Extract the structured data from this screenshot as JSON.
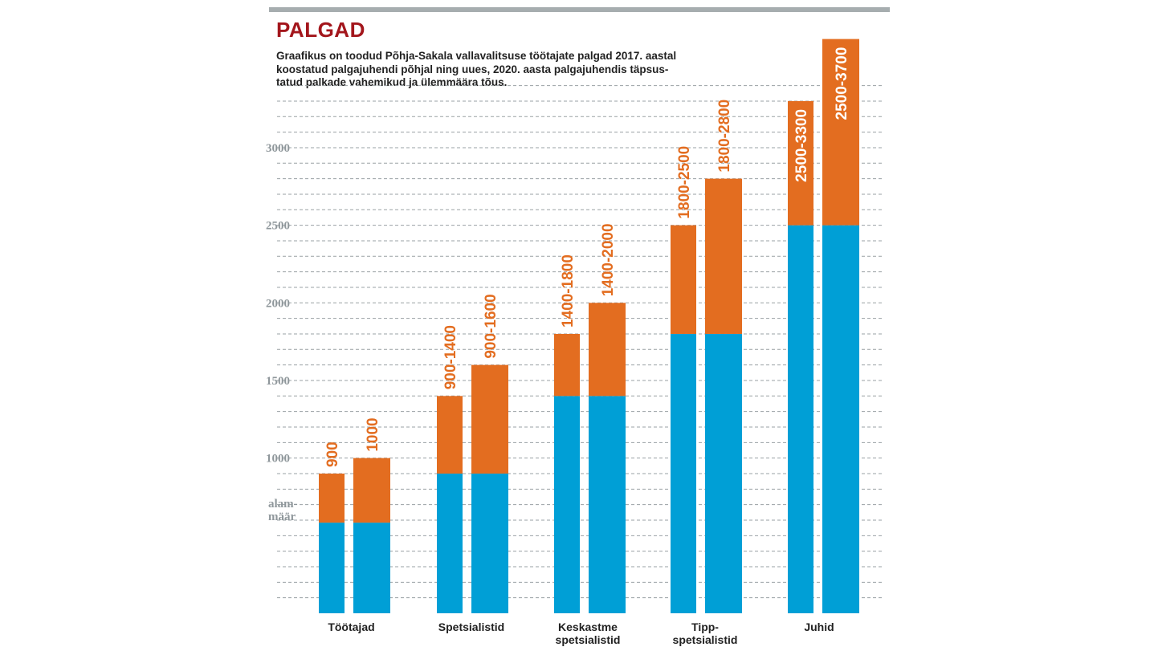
{
  "chart_data": {
    "type": "bar",
    "title": "PALGAD",
    "subtitle": [
      "Graafikus on toodud Põhja-Sakala vallavalitsuse töötajate palgad 2017. aastal",
      "koostatud palgajuhendi põhjal ning uues, 2020. aasta palgajuhendis täpsus-",
      "tatud palkade vahemikud ja ülemmäära tõus."
    ],
    "categories": [
      [
        "Töötajad"
      ],
      [
        "Spetsialistid"
      ],
      [
        "Keskastme",
        "spetsialistid"
      ],
      [
        "Tipp-",
        "spetsialistid"
      ],
      [
        "Juhid"
      ]
    ],
    "y_ticks": [
      1000,
      1500,
      2000,
      2500,
      3000
    ],
    "y_tick_labels": [
      "1000",
      "1500",
      "2000",
      "2500",
      "3000"
    ],
    "ylim": [
      0,
      3700
    ],
    "minimum_wage_label": [
      "alam-",
      "määr"
    ],
    "minimum_wage_value": 584,
    "grid": true,
    "series": [
      {
        "min": [
          584,
          900,
          1400,
          1800,
          2500
        ],
        "max": [
          900,
          1400,
          1800,
          2500,
          3300
        ],
        "labels": [
          "900",
          "900-1400",
          "1400-1800",
          "1800-2500",
          "2500-3300"
        ]
      },
      {
        "min": [
          584,
          900,
          1400,
          1800,
          2500
        ],
        "max": [
          1000,
          1600,
          2000,
          2800,
          3700
        ],
        "labels": [
          "1000",
          "900-1600",
          "1400-2000",
          "1800-2800",
          "2500-3700"
        ]
      }
    ],
    "colors": {
      "base": "#009fd6",
      "range": "#e36d20",
      "label_orange": "#e36d20",
      "label_white": "#ffffff"
    }
  }
}
